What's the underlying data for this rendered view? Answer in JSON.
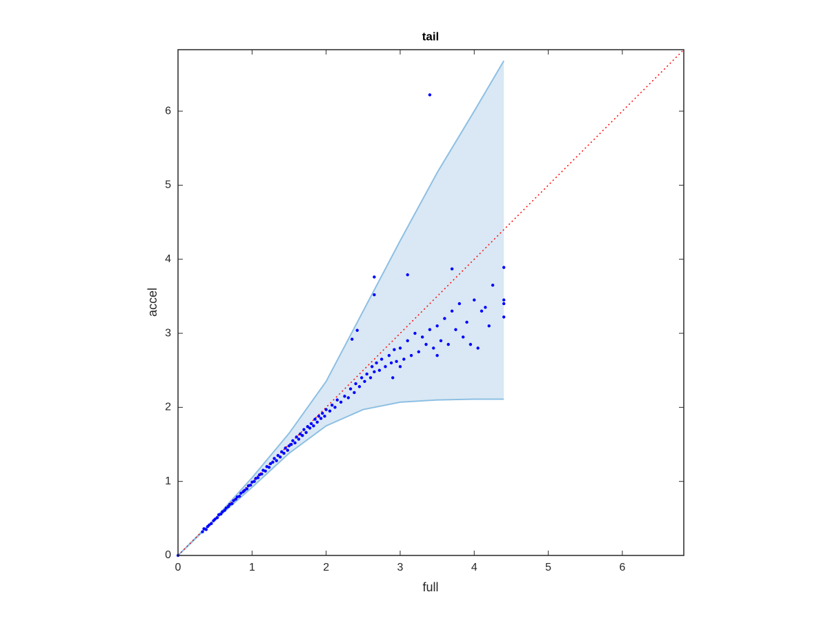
{
  "chart_data": {
    "type": "scatter",
    "title": "tail",
    "xlabel": "full",
    "ylabel": "accel",
    "xlim": [
      0,
      6.83
    ],
    "ylim": [
      0,
      6.83
    ],
    "xticks": [
      0,
      1,
      2,
      3,
      4,
      5,
      6
    ],
    "yticks": [
      0,
      1,
      2,
      3,
      4,
      5,
      6
    ],
    "band": {
      "color": "#d9e8f4",
      "edge_color": "#8dbfe3",
      "x": [
        0,
        0.5,
        1,
        1.5,
        2,
        2.5,
        3,
        3.5,
        4,
        4.4
      ],
      "upper": [
        0,
        0.5,
        1.05,
        1.65,
        2.35,
        3.3,
        4.25,
        5.17,
        6.0,
        6.68
      ],
      "lower": [
        0,
        0.48,
        0.92,
        1.38,
        1.75,
        1.97,
        2.07,
        2.1,
        2.11,
        2.11
      ]
    },
    "reference_line": {
      "color": "#ff0000",
      "x": [
        0,
        6.83
      ],
      "y": [
        0,
        6.83
      ]
    },
    "points": {
      "color": "#0000ff",
      "x": [
        0,
        0.33,
        0.35,
        0.38,
        0.4,
        0.42,
        0.45,
        0.48,
        0.5,
        0.53,
        0.55,
        0.58,
        0.6,
        0.63,
        0.65,
        0.68,
        0.7,
        0.73,
        0.75,
        0.78,
        0.8,
        0.83,
        0.85,
        0.88,
        0.9,
        0.93,
        0.95,
        0.98,
        1.0,
        1.03,
        1.05,
        1.08,
        1.1,
        1.13,
        1.15,
        1.18,
        1.2,
        1.23,
        1.25,
        1.28,
        1.3,
        1.33,
        1.35,
        1.38,
        1.4,
        1.43,
        1.45,
        1.48,
        1.5,
        1.53,
        1.55,
        1.58,
        1.6,
        1.63,
        1.65,
        1.68,
        1.7,
        1.73,
        1.75,
        1.78,
        1.8,
        1.83,
        1.85,
        1.88,
        1.9,
        1.93,
        1.95,
        1.98,
        2.0,
        2.05,
        2.08,
        2.12,
        2.15,
        2.2,
        2.25,
        2.3,
        2.33,
        2.38,
        2.4,
        2.45,
        2.48,
        2.52,
        2.55,
        2.6,
        2.62,
        2.65,
        2.68,
        2.72,
        2.75,
        2.8,
        2.85,
        2.88,
        2.92,
        2.95,
        3.0,
        3.05,
        3.1,
        3.15,
        3.2,
        3.25,
        3.3,
        3.35,
        3.4,
        3.45,
        3.5,
        3.55,
        3.6,
        3.65,
        3.7,
        3.75,
        3.8,
        3.85,
        3.9,
        3.95,
        4.0,
        4.05,
        4.1,
        4.15,
        4.2,
        4.25,
        4.4,
        4.4,
        4.4,
        4.4,
        3.4,
        2.65,
        2.65,
        3.1,
        3.7,
        2.35,
        2.42,
        2.9,
        3.0,
        3.5
      ],
      "y": [
        0,
        0.32,
        0.36,
        0.35,
        0.39,
        0.41,
        0.43,
        0.47,
        0.49,
        0.51,
        0.55,
        0.56,
        0.59,
        0.61,
        0.64,
        0.66,
        0.69,
        0.7,
        0.74,
        0.76,
        0.79,
        0.8,
        0.84,
        0.86,
        0.88,
        0.9,
        0.94,
        0.95,
        0.99,
        1.0,
        1.04,
        1.05,
        1.09,
        1.1,
        1.15,
        1.14,
        1.2,
        1.19,
        1.24,
        1.26,
        1.31,
        1.28,
        1.35,
        1.33,
        1.4,
        1.38,
        1.45,
        1.42,
        1.48,
        1.5,
        1.55,
        1.52,
        1.6,
        1.57,
        1.64,
        1.62,
        1.7,
        1.66,
        1.74,
        1.72,
        1.78,
        1.75,
        1.84,
        1.8,
        1.88,
        1.85,
        1.92,
        1.88,
        1.97,
        1.95,
        2.03,
        2.0,
        2.1,
        2.07,
        2.15,
        2.13,
        2.25,
        2.2,
        2.32,
        2.28,
        2.4,
        2.35,
        2.45,
        2.4,
        2.55,
        2.48,
        2.6,
        2.5,
        2.65,
        2.55,
        2.7,
        2.6,
        2.78,
        2.62,
        2.8,
        2.65,
        2.9,
        2.7,
        3.0,
        2.75,
        2.95,
        2.85,
        3.05,
        2.8,
        3.1,
        2.9,
        3.2,
        2.85,
        3.3,
        3.05,
        3.4,
        2.95,
        3.15,
        2.85,
        3.45,
        2.8,
        3.3,
        3.35,
        3.1,
        3.65,
        3.89,
        3.45,
        3.4,
        3.22,
        6.22,
        3.76,
        3.52,
        3.79,
        3.87,
        2.92,
        3.04,
        2.4,
        2.55,
        2.7
      ]
    }
  }
}
